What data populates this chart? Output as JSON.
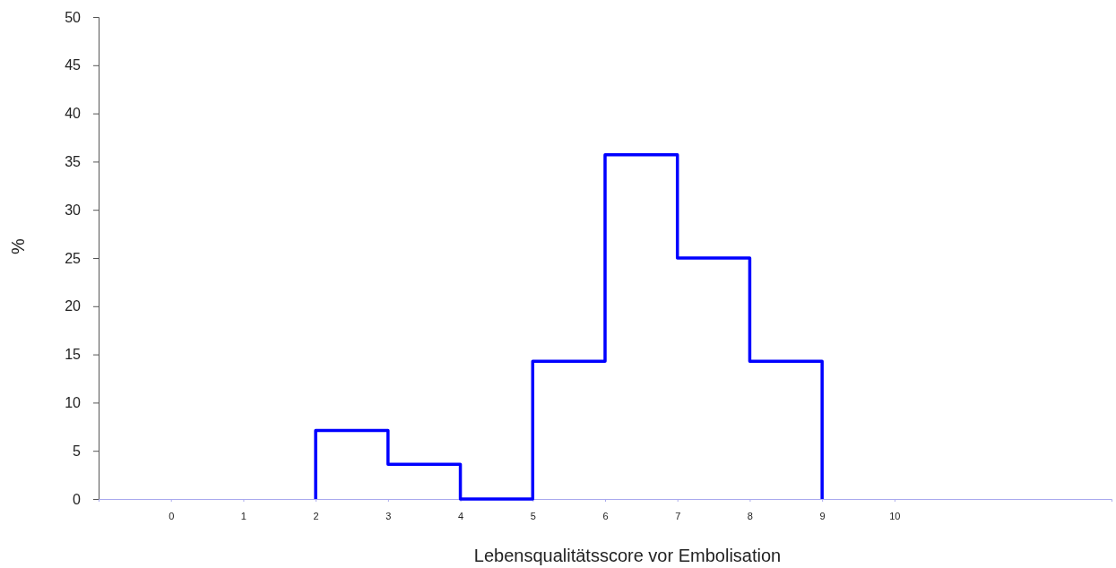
{
  "chart_data": {
    "type": "histogram",
    "xlabel": "Lebensqualitätsscore vor Embolisation",
    "ylabel": "%",
    "bins": [
      2,
      3,
      4,
      5,
      6,
      7,
      8,
      9
    ],
    "values": [
      7.1,
      3.6,
      0,
      14.3,
      35.7,
      25,
      14.3
    ],
    "color": "#0000ff",
    "xlim": [
      -1,
      13
    ],
    "xticks": [
      0,
      1,
      2,
      3,
      4,
      5,
      6,
      7,
      8,
      9,
      10
    ],
    "ylim": [
      0,
      50
    ],
    "yticks": [
      0,
      5,
      10,
      15,
      20,
      25,
      30,
      35,
      40,
      45,
      50
    ],
    "grid": false
  }
}
